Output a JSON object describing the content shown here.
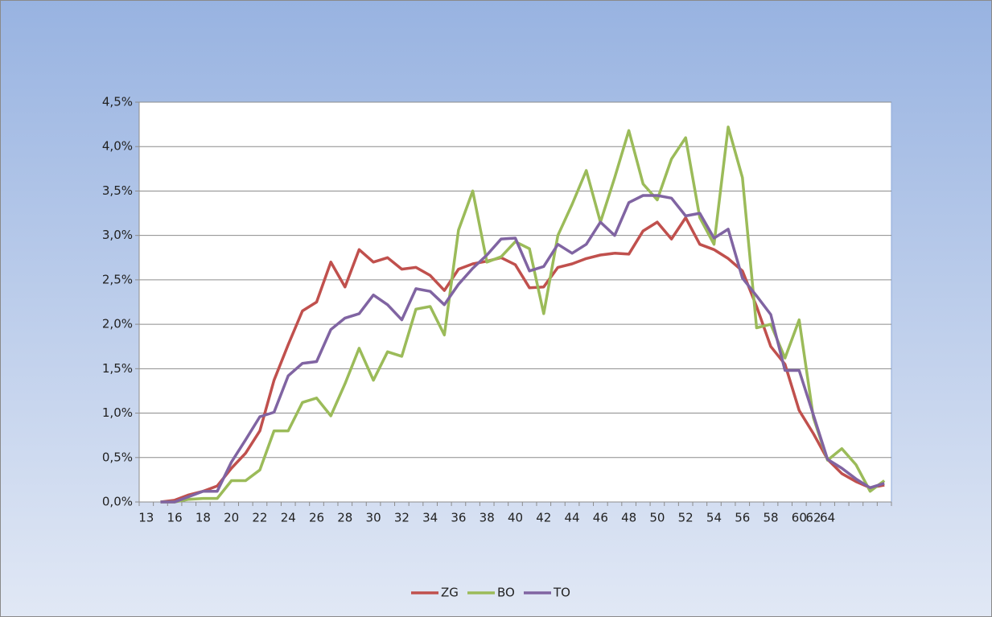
{
  "chart_data": {
    "type": "line",
    "categories": [
      "13",
      null,
      "16",
      null,
      "18",
      null,
      "20",
      null,
      "22",
      null,
      "24",
      null,
      "26",
      null,
      "28",
      null,
      "30",
      null,
      "32",
      null,
      "34",
      null,
      "36",
      null,
      "38",
      null,
      "40",
      null,
      "42",
      null,
      "44",
      null,
      "46",
      null,
      "48",
      null,
      "50",
      null,
      "52",
      null,
      "54",
      null,
      "56",
      null,
      "58",
      null,
      "60",
      "62",
      "64",
      null,
      null,
      null,
      null
    ],
    "series": [
      {
        "name": "ZG",
        "color": "#c0504d",
        "values": [
          null,
          0,
          0.02,
          0.08,
          0.12,
          0.18,
          0.38,
          0.55,
          0.8,
          1.37,
          1.77,
          2.15,
          2.25,
          2.7,
          2.42,
          2.84,
          2.7,
          2.75,
          2.62,
          2.64,
          2.55,
          2.38,
          2.62,
          2.68,
          2.71,
          2.75,
          2.67,
          2.41,
          2.42,
          2.64,
          2.68,
          2.74,
          2.78,
          2.8,
          2.79,
          3.05,
          3.15,
          2.96,
          3.2,
          2.9,
          2.84,
          2.74,
          2.6,
          2.2,
          1.75,
          1.55,
          1.03,
          0.77,
          0.48,
          0.32,
          0.23,
          0.16,
          0.19
        ]
      },
      {
        "name": "BO",
        "color": "#9bbb59",
        "values": [
          null,
          0,
          0,
          0.03,
          0.04,
          0.04,
          0.24,
          0.24,
          0.36,
          0.8,
          0.8,
          1.12,
          1.17,
          0.97,
          1.33,
          1.73,
          1.37,
          1.69,
          1.64,
          2.17,
          2.2,
          1.88,
          3.06,
          3.5,
          2.7,
          2.76,
          2.93,
          2.85,
          2.12,
          3.0,
          3.35,
          3.73,
          3.15,
          3.65,
          4.18,
          3.58,
          3.4,
          3.86,
          4.1,
          3.2,
          2.9,
          4.22,
          3.65,
          1.96,
          2.0,
          1.62,
          2.05,
          0.95,
          0.47,
          0.6,
          0.42,
          0.12,
          0.24
        ]
      },
      {
        "name": "TO",
        "color": "#8064a2",
        "values": [
          null,
          0,
          0,
          0.06,
          0.12,
          0.12,
          0.45,
          0.7,
          0.96,
          1.01,
          1.42,
          1.56,
          1.58,
          1.94,
          2.07,
          2.12,
          2.33,
          2.22,
          2.05,
          2.4,
          2.37,
          2.22,
          2.45,
          2.63,
          2.78,
          2.96,
          2.97,
          2.6,
          2.65,
          2.9,
          2.8,
          2.9,
          3.15,
          3.0,
          3.37,
          3.45,
          3.45,
          3.42,
          3.22,
          3.25,
          2.97,
          3.07,
          2.52,
          2.32,
          2.11,
          1.48,
          1.48,
          0.98,
          0.48,
          0.38,
          0.26,
          0.16,
          0.21
        ]
      }
    ],
    "ylim": [
      0,
      4.5
    ],
    "yticks": [
      {
        "value": 0,
        "label": "0,0%"
      },
      {
        "value": 0.5,
        "label": "0,5%"
      },
      {
        "value": 1,
        "label": "1,0%"
      },
      {
        "value": 1.5,
        "label": "1,5%"
      },
      {
        "value": 2,
        "label": "2,0%"
      },
      {
        "value": 2.5,
        "label": "2,5%"
      },
      {
        "value": 3,
        "label": "3,0%"
      },
      {
        "value": 3.5,
        "label": "3,5%"
      },
      {
        "value": 4,
        "label": "4,0%"
      },
      {
        "value": 4.5,
        "label": "4,5%"
      }
    ],
    "grid": true,
    "legend": "bottom"
  }
}
